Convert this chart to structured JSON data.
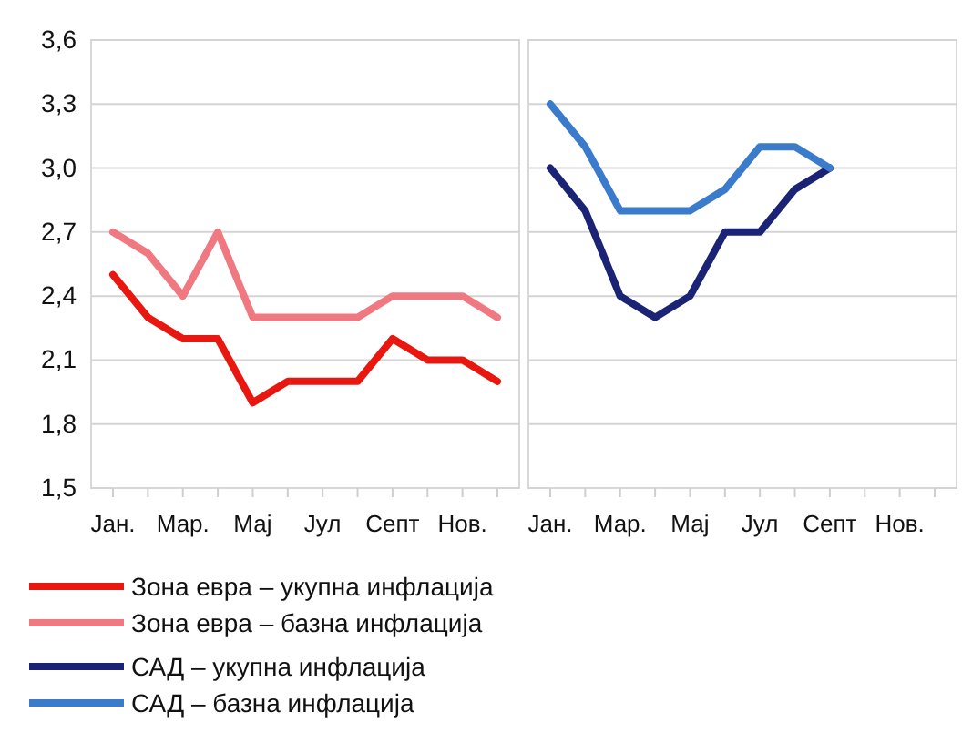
{
  "chart_data": [
    {
      "type": "line",
      "categories": [
        "Јан.",
        null,
        "Мар.",
        null,
        "Мај",
        null,
        "Јул",
        null,
        "Септ",
        null,
        "Нов.",
        null
      ],
      "series": [
        {
          "name": "Зона евра – укупна инфлација",
          "color": "#e8170f",
          "values": [
            2.5,
            2.3,
            2.2,
            2.2,
            1.9,
            2.0,
            2.0,
            2.0,
            2.2,
            2.1,
            2.1,
            2.0
          ]
        },
        {
          "name": "Зона евра – базна инфлација",
          "color": "#f07880",
          "values": [
            2.7,
            2.6,
            2.4,
            2.7,
            2.3,
            2.3,
            2.3,
            2.3,
            2.4,
            2.4,
            2.4,
            2.3
          ]
        }
      ],
      "ylim": [
        1.5,
        3.6
      ],
      "yticks": [
        {
          "value": 1.5,
          "label": "1,5"
        },
        {
          "value": 1.8,
          "label": "1,8"
        },
        {
          "value": 2.1,
          "label": "2,1"
        },
        {
          "value": 2.4,
          "label": "2,4"
        },
        {
          "value": 2.7,
          "label": "2,7"
        },
        {
          "value": 3.0,
          "label": "3,0"
        },
        {
          "value": 3.3,
          "label": "3,3"
        },
        {
          "value": 3.6,
          "label": "3,6"
        }
      ],
      "grid": "y",
      "legend": "bottom"
    },
    {
      "type": "line",
      "categories": [
        "Јан.",
        null,
        "Мар.",
        null,
        "Мај",
        null,
        "Јул",
        null,
        "Септ",
        null,
        "Нов.",
        null
      ],
      "series": [
        {
          "name": "САД – укупна инфлација",
          "color": "#1b2375",
          "values": [
            3.0,
            2.8,
            2.4,
            2.3,
            2.4,
            2.7,
            2.7,
            2.9,
            3.0,
            null,
            null,
            null
          ]
        },
        {
          "name": "САД – базна инфлација",
          "color": "#3a7bcb",
          "values": [
            3.3,
            3.1,
            2.8,
            2.8,
            2.8,
            2.9,
            3.1,
            3.1,
            3.0,
            null,
            null,
            null
          ]
        }
      ],
      "ylim": [
        1.5,
        3.6
      ],
      "yticks": [
        {
          "value": 1.5,
          "label": null
        },
        {
          "value": 1.8,
          "label": null
        },
        {
          "value": 2.1,
          "label": null
        },
        {
          "value": 2.4,
          "label": null
        },
        {
          "value": 2.7,
          "label": null
        },
        {
          "value": 3.0,
          "label": null
        },
        {
          "value": 3.3,
          "label": null
        },
        {
          "value": 3.6,
          "label": null
        }
      ],
      "grid": "y",
      "legend": "bottom",
      "tick_labels": "x"
    }
  ]
}
